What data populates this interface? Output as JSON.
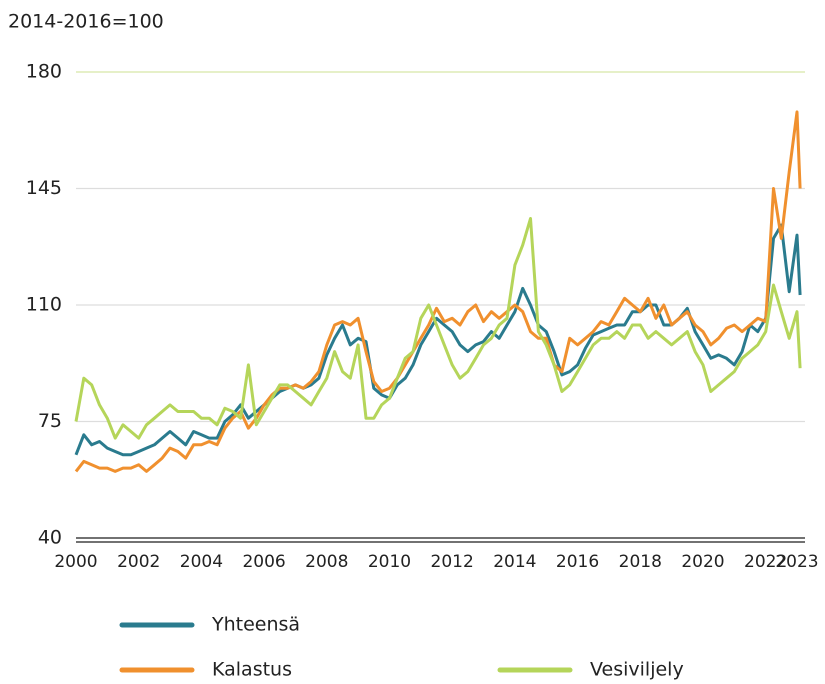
{
  "chart_data": {
    "type": "line",
    "y_label": "2014-2016=100",
    "x": [
      2000,
      2000.25,
      2000.5,
      2000.75,
      2001,
      2001.25,
      2001.5,
      2001.75,
      2002,
      2002.25,
      2002.5,
      2002.75,
      2003,
      2003.25,
      2003.5,
      2003.75,
      2004,
      2004.25,
      2004.5,
      2004.75,
      2005,
      2005.25,
      2005.5,
      2005.75,
      2006,
      2006.25,
      2006.5,
      2006.75,
      2007,
      2007.25,
      2007.5,
      2007.75,
      2008,
      2008.25,
      2008.5,
      2008.75,
      2009,
      2009.25,
      2009.5,
      2009.75,
      2010,
      2010.25,
      2010.5,
      2010.75,
      2011,
      2011.25,
      2011.5,
      2011.75,
      2012,
      2012.25,
      2012.5,
      2012.75,
      2013,
      2013.25,
      2013.5,
      2013.75,
      2014,
      2014.25,
      2014.5,
      2014.75,
      2015,
      2015.25,
      2015.5,
      2015.75,
      2016,
      2016.25,
      2016.5,
      2016.75,
      2017,
      2017.25,
      2017.5,
      2017.75,
      2018,
      2018.25,
      2018.5,
      2018.75,
      2019,
      2019.25,
      2019.5,
      2019.75,
      2020,
      2020.25,
      2020.5,
      2020.75,
      2021,
      2021.25,
      2021.5,
      2021.75,
      2022,
      2022.25,
      2022.5,
      2022.75,
      2023,
      2023.1
    ],
    "series": [
      {
        "name": "Yhteensä",
        "color": "#2a7b8e",
        "values": [
          65,
          71,
          68,
          69,
          67,
          66,
          65,
          65,
          66,
          67,
          68,
          70,
          72,
          70,
          68,
          72,
          71,
          70,
          70,
          75,
          77,
          80,
          76,
          78,
          80,
          82,
          84,
          85,
          86,
          85,
          86,
          88,
          95,
          100,
          104,
          98,
          100,
          99,
          85,
          83,
          82,
          86,
          88,
          92,
          98,
          102,
          106,
          104,
          102,
          98,
          96,
          98,
          99,
          102,
          100,
          104,
          108,
          115,
          110,
          104,
          102,
          96,
          89,
          90,
          92,
          97,
          101,
          102,
          103,
          104,
          104,
          108,
          108,
          110,
          110,
          104,
          104,
          106,
          109,
          102,
          98,
          94,
          95,
          94,
          92,
          96,
          104,
          102,
          106,
          130,
          134,
          114,
          131,
          113
        ]
      },
      {
        "name": "Kalastus",
        "color": "#f0902e",
        "values": [
          60,
          63,
          62,
          61,
          61,
          60,
          61,
          61,
          62,
          60,
          62,
          64,
          67,
          66,
          64,
          68,
          68,
          69,
          68,
          73,
          76,
          78,
          73,
          76,
          80,
          83,
          85,
          85,
          86,
          85,
          87,
          90,
          98,
          104,
          105,
          104,
          106,
          96,
          87,
          84,
          85,
          88,
          92,
          96,
          100,
          104,
          109,
          105,
          106,
          104,
          108,
          110,
          105,
          108,
          106,
          108,
          110,
          108,
          102,
          100,
          100,
          92,
          90,
          100,
          98,
          100,
          102,
          105,
          104,
          108,
          112,
          110,
          108,
          112,
          106,
          110,
          104,
          106,
          108,
          104,
          102,
          98,
          100,
          103,
          104,
          102,
          104,
          106,
          105,
          145,
          130,
          150,
          168,
          145
        ]
      },
      {
        "name": "Vesiviljely",
        "color": "#b5d55a",
        "values": [
          75,
          88,
          86,
          80,
          76,
          70,
          74,
          72,
          70,
          74,
          76,
          78,
          80,
          78,
          78,
          78,
          76,
          76,
          74,
          79,
          78,
          76,
          92,
          74,
          78,
          82,
          86,
          86,
          84,
          82,
          80,
          84,
          88,
          96,
          90,
          88,
          98,
          76,
          76,
          80,
          82,
          88,
          94,
          96,
          106,
          110,
          104,
          98,
          92,
          88,
          90,
          94,
          98,
          100,
          104,
          106,
          122,
          128,
          136,
          102,
          98,
          92,
          84,
          86,
          90,
          94,
          98,
          100,
          100,
          102,
          100,
          104,
          104,
          100,
          102,
          100,
          98,
          100,
          102,
          96,
          92,
          84,
          86,
          88,
          90,
          94,
          96,
          98,
          102,
          116,
          108,
          100,
          108,
          91
        ]
      }
    ],
    "xlim": [
      2000,
      2023
    ],
    "xticks": [
      2000,
      2002,
      2004,
      2006,
      2008,
      2010,
      2012,
      2014,
      2016,
      2018,
      2020,
      2022,
      2023
    ],
    "ylim": [
      40,
      180
    ],
    "yticks": [
      40,
      75,
      110,
      145,
      180
    ],
    "grid": true
  }
}
